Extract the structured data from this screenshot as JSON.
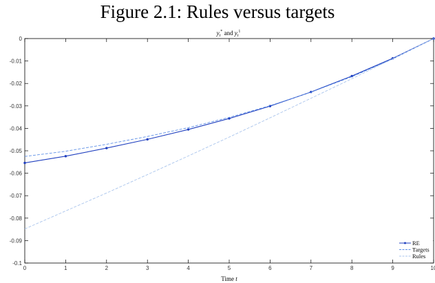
{
  "figure_title": "Figure 2.1: Rules versus targets",
  "chart_data": {
    "type": "line",
    "title": "y_t^* and y_t^1",
    "xlabel": "Time t",
    "ylabel": "",
    "xlim": [
      0,
      10
    ],
    "ylim": [
      -0.1,
      0
    ],
    "x_ticks": [
      "0",
      "1",
      "2",
      "3",
      "4",
      "5",
      "6",
      "7",
      "8",
      "9",
      "10"
    ],
    "y_ticks": [
      "0",
      "-0.01",
      "-0.02",
      "-0.03",
      "-0.04",
      "-0.05",
      "-0.06",
      "-0.07",
      "-0.08",
      "-0.09",
      "-0.1"
    ],
    "grid": false,
    "legend_position": "bottom-right",
    "x": [
      0,
      1,
      2,
      3,
      4,
      5,
      6,
      7,
      8,
      9,
      10
    ],
    "series": [
      {
        "name": "RE",
        "color": "#1f3fbf",
        "style": "solid-markers",
        "values": [
          -0.0554,
          -0.0524,
          -0.0488,
          -0.0449,
          -0.0405,
          -0.0356,
          -0.0301,
          -0.0238,
          -0.0167,
          -0.0088,
          0.0
        ]
      },
      {
        "name": "Targets",
        "color": "#5b8ee6",
        "style": "dashed",
        "values": [
          -0.0525,
          -0.0502,
          -0.0471,
          -0.0436,
          -0.0397,
          -0.0351,
          -0.0299,
          -0.0239,
          -0.017,
          -0.0091,
          0.0
        ]
      },
      {
        "name": "Rules",
        "color": "#a9c4ec",
        "style": "dashed",
        "values": [
          -0.0848,
          -0.0768,
          -0.0688,
          -0.0606,
          -0.0523,
          -0.0439,
          -0.0353,
          -0.0266,
          -0.0179,
          -0.009,
          0.0
        ]
      }
    ]
  }
}
